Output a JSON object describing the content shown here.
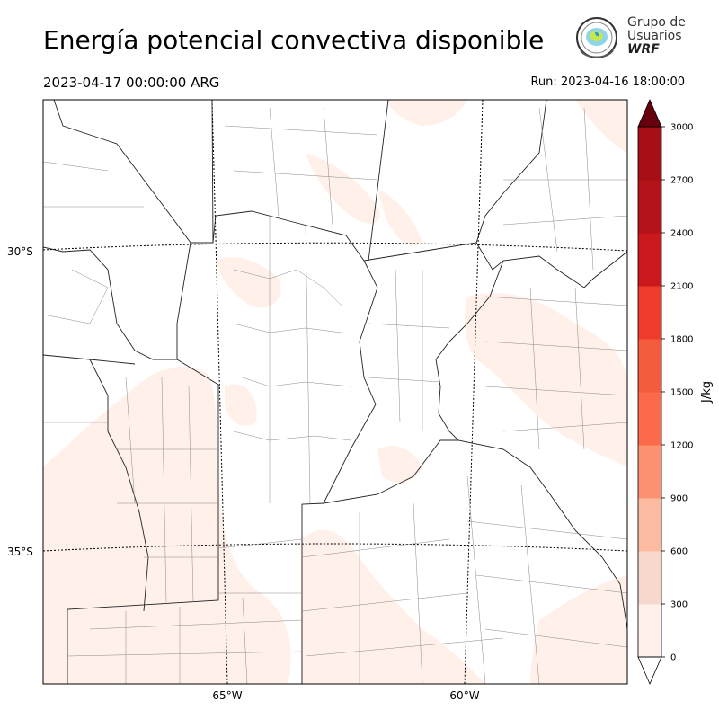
{
  "title": "Energía potencial convectiva disponible",
  "valid_time": "2023-04-17 00:00:00 ARG",
  "run_time": "Run: 2023-04-16 18:00:00",
  "logo": {
    "line1": "Grupo de",
    "line2": "Usuarios",
    "line3": "WRF",
    "icon": "globe-emblem-icon"
  },
  "map": {
    "lat_labels": [
      "30°S",
      "35°S"
    ],
    "lon_labels": [
      "65°W",
      "60°W"
    ],
    "gridlines": "dotted"
  },
  "colorbar": {
    "unit": "J/kg",
    "ticks": [
      "0",
      "300",
      "600",
      "900",
      "1200",
      "1500",
      "1800",
      "2100",
      "2400",
      "2700",
      "3000"
    ],
    "colors": [
      "#fff0e9",
      "#f7d8cd",
      "#fcbba1",
      "#fc9272",
      "#fb6a4a",
      "#f45a3c",
      "#ef3b2c",
      "#cb181d",
      "#b31218",
      "#a50f15",
      "#67000d"
    ],
    "extend": "both"
  }
}
